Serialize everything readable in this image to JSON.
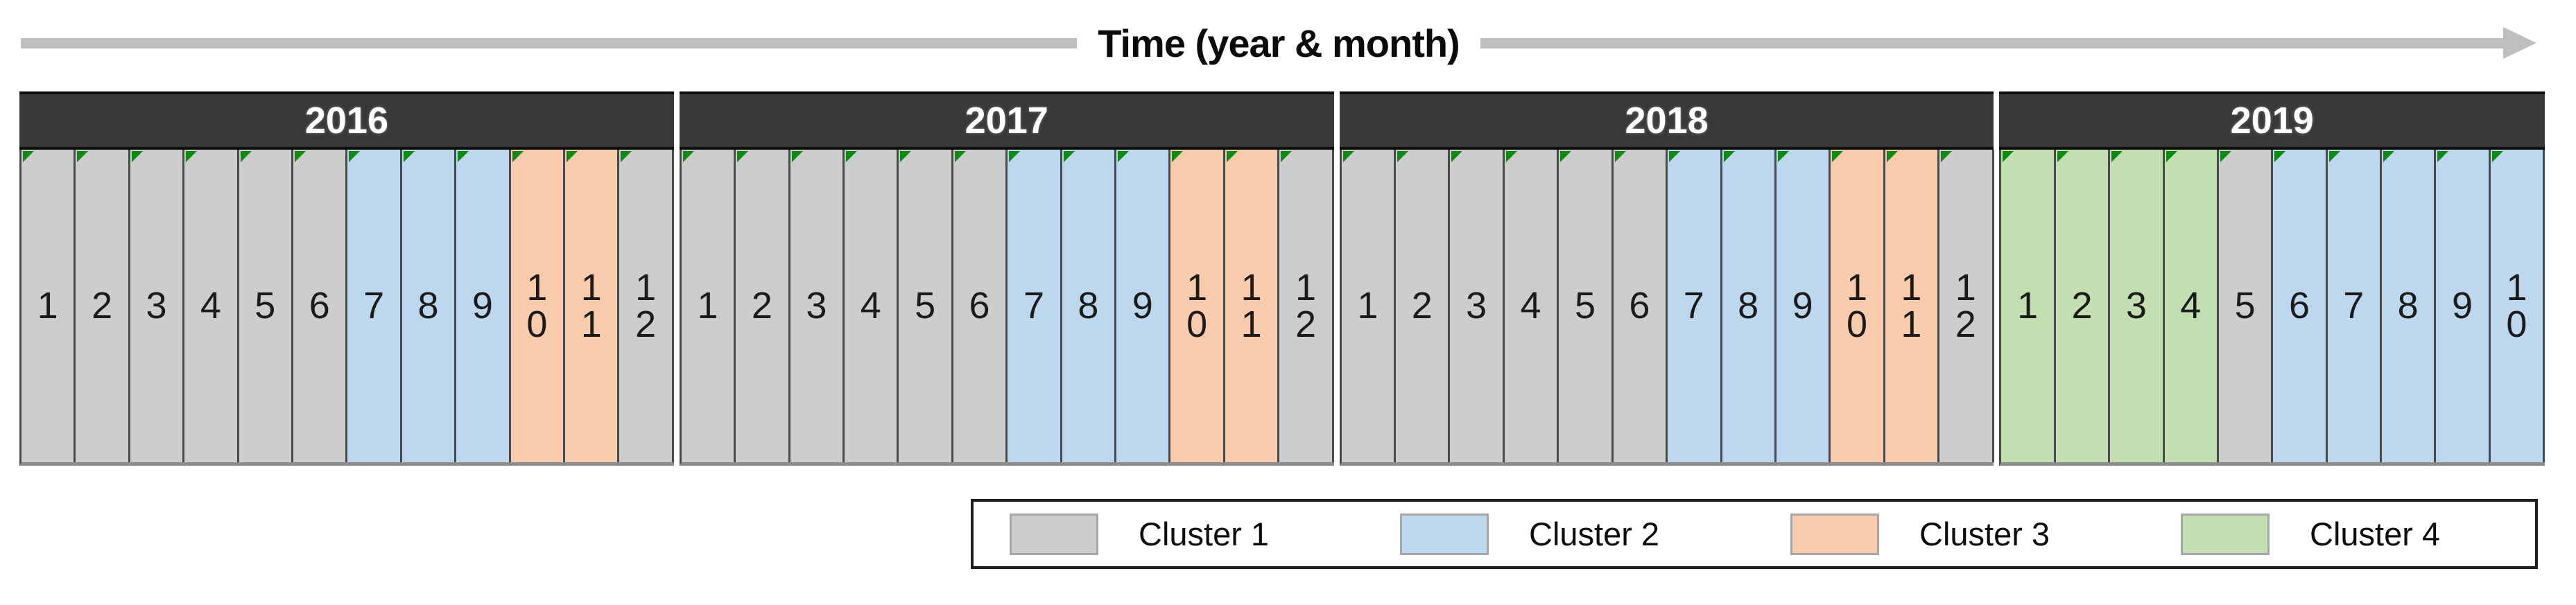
{
  "axis": {
    "title": "Time (year & month)"
  },
  "colors": {
    "cluster1": "#CDCDCD",
    "cluster2": "#BDD7EE",
    "cluster3": "#F8CBAD",
    "cluster4": "#C3DFB2",
    "header_bg": "#383838",
    "header_text": "#FFFFFF",
    "axis_arrow": "#BFBFBF",
    "marker_green": "#0C8A12",
    "cell_border": "#4A4A4A",
    "table_bottom_border": "#8C8C8C",
    "month_text": "#1B1B1B",
    "legend_border": "#1F1F1F"
  },
  "legend": {
    "items": [
      {
        "label": "Cluster 1",
        "cluster": 1
      },
      {
        "label": "Cluster 2",
        "cluster": 2
      },
      {
        "label": "Cluster 3",
        "cluster": 3
      },
      {
        "label": "Cluster 4",
        "cluster": 4
      }
    ]
  },
  "chart_data": {
    "type": "heatmap",
    "title": "Time (year & month)",
    "legend_entries": [
      "Cluster 1",
      "Cluster 2",
      "Cluster 3",
      "Cluster 4"
    ],
    "cluster_colors": {
      "Cluster 1": "#CDCDCD",
      "Cluster 2": "#BDD7EE",
      "Cluster 3": "#F8CBAD",
      "Cluster 4": "#C3DFB2"
    },
    "years": [
      {
        "year": "2016",
        "months": [
          "1",
          "2",
          "3",
          "4",
          "5",
          "6",
          "7",
          "8",
          "9",
          "10",
          "11",
          "12"
        ],
        "clusters": [
          1,
          1,
          1,
          1,
          1,
          1,
          2,
          2,
          2,
          3,
          3,
          1
        ]
      },
      {
        "year": "2017",
        "months": [
          "1",
          "2",
          "3",
          "4",
          "5",
          "6",
          "7",
          "8",
          "9",
          "10",
          "11",
          "12"
        ],
        "clusters": [
          1,
          1,
          1,
          1,
          1,
          1,
          2,
          2,
          2,
          3,
          3,
          1
        ]
      },
      {
        "year": "2018",
        "months": [
          "1",
          "2",
          "3",
          "4",
          "5",
          "6",
          "7",
          "8",
          "9",
          "10",
          "11",
          "12"
        ],
        "clusters": [
          1,
          1,
          1,
          1,
          1,
          1,
          2,
          2,
          2,
          3,
          3,
          1
        ]
      },
      {
        "year": "2019",
        "months": [
          "1",
          "2",
          "3",
          "4",
          "5",
          "6",
          "7",
          "8",
          "9",
          "10"
        ],
        "clusters": [
          4,
          4,
          4,
          4,
          1,
          2,
          2,
          2,
          2,
          2
        ]
      }
    ]
  }
}
